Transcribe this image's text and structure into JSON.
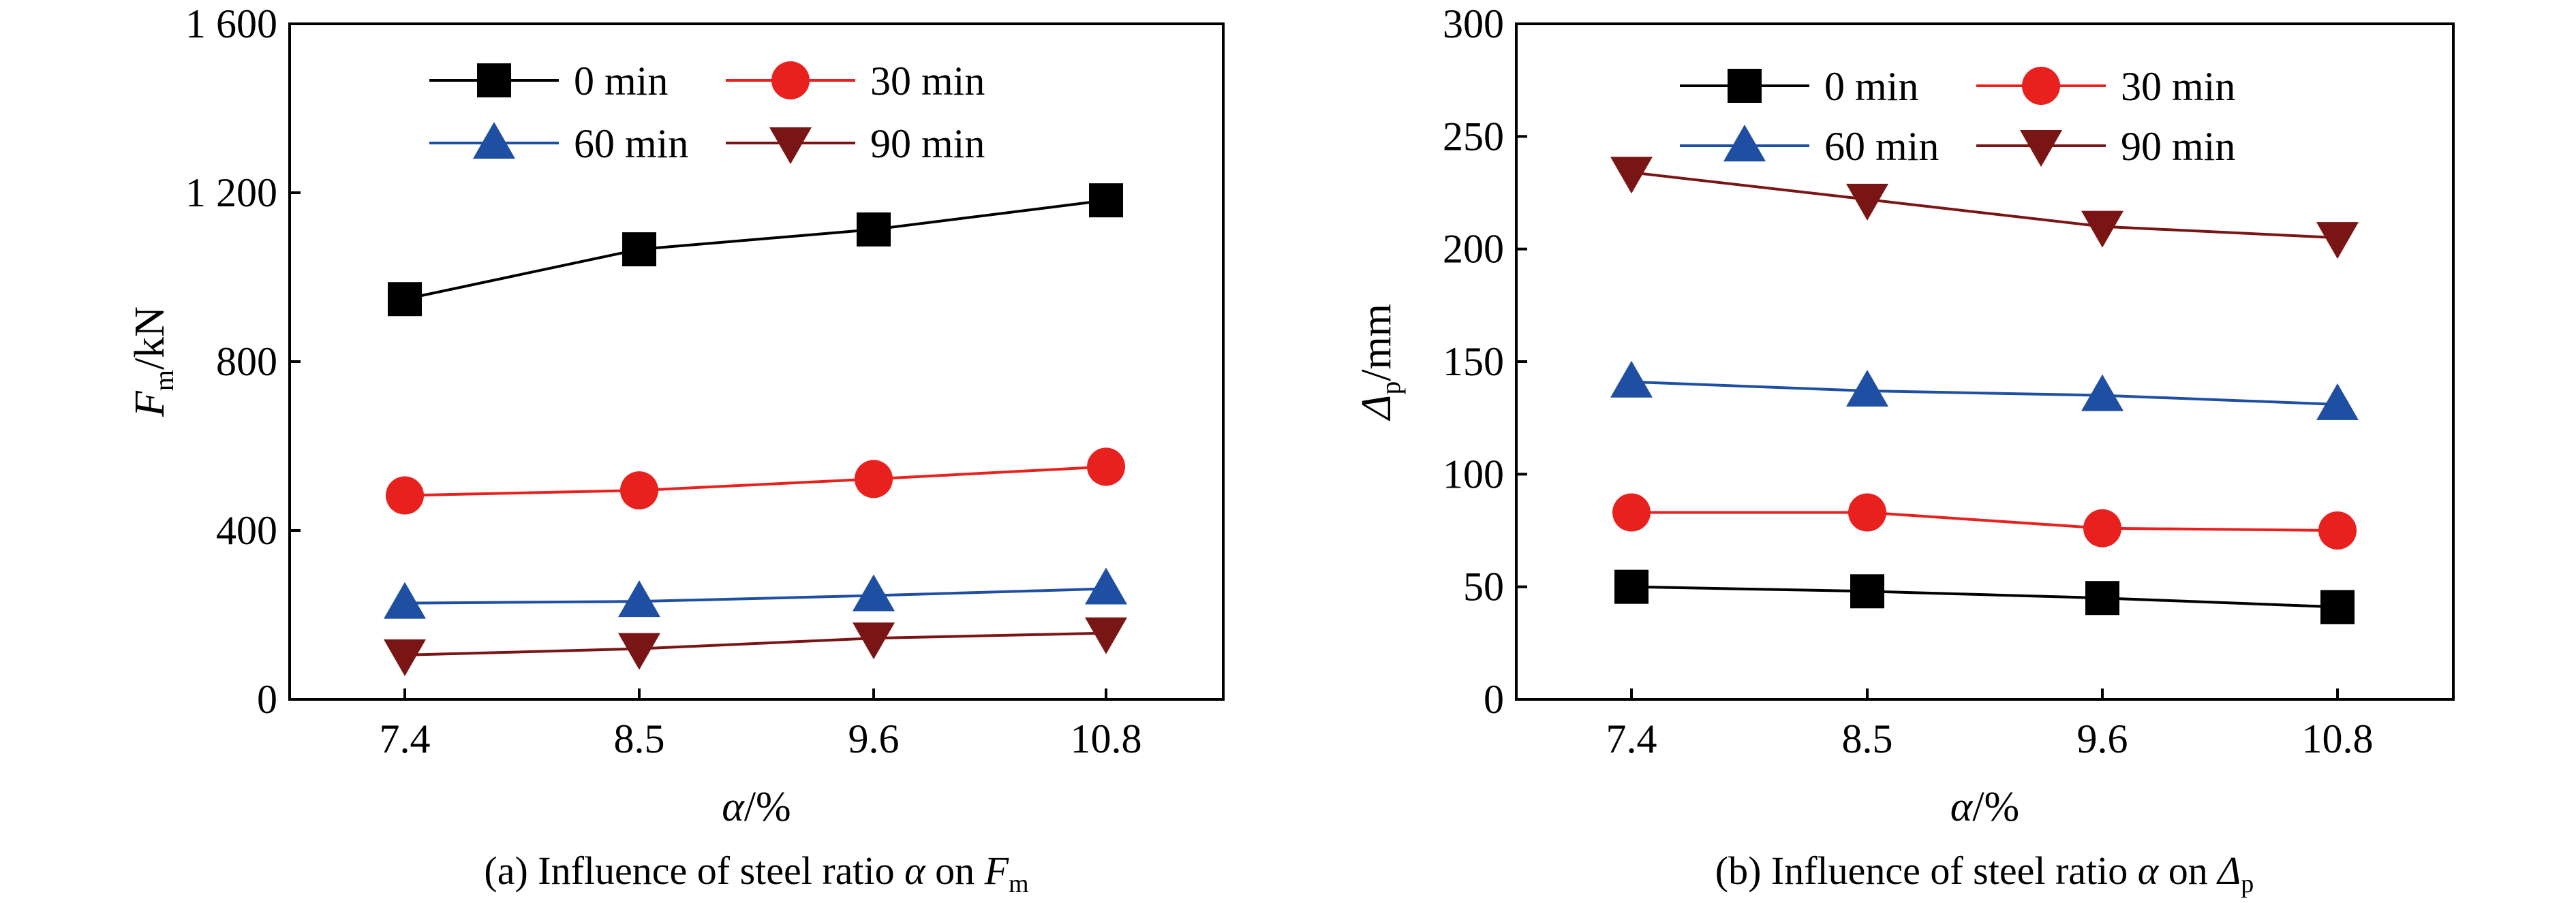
{
  "chart_data": [
    {
      "id": "a",
      "type": "line",
      "categories": [
        "7.4",
        "8.5",
        "9.6",
        "10.8"
      ],
      "series": [
        {
          "name": "0 min",
          "color": "#000000",
          "marker": "square",
          "values": [
            948,
            1066,
            1113,
            1182
          ]
        },
        {
          "name": "30 min",
          "color": "#e8201e",
          "marker": "circle",
          "values": [
            483,
            495,
            522,
            551
          ]
        },
        {
          "name": "60 min",
          "color": "#1f4fa3",
          "marker": "triangle-up",
          "values": [
            228,
            232,
            246,
            262
          ]
        },
        {
          "name": "90 min",
          "color": "#7a1515",
          "marker": "triangle-down",
          "values": [
            105,
            120,
            145,
            157
          ]
        }
      ],
      "ylim": [
        0,
        1600
      ],
      "yticks": [
        0,
        400,
        800,
        1200,
        1600
      ],
      "ytick_labels": [
        "0",
        "400",
        "800",
        "1 200",
        "1 600"
      ],
      "ylabel": {
        "main": "F",
        "sub": "m",
        "rest": "/kN"
      },
      "xlabel": {
        "main": "α",
        "rest": "/%"
      },
      "caption": {
        "pre": "(a) Influence of steel ratio ",
        "alpha": "α",
        "mid": " on ",
        "main": "F",
        "sub": "m"
      },
      "legend_position": "top-right",
      "grid": false
    },
    {
      "id": "b",
      "type": "line",
      "categories": [
        "7.4",
        "8.5",
        "9.6",
        "10.8"
      ],
      "series": [
        {
          "name": "0 min",
          "color": "#000000",
          "marker": "square",
          "values": [
            50,
            48,
            45,
            41
          ]
        },
        {
          "name": "30 min",
          "color": "#e8201e",
          "marker": "circle",
          "values": [
            83,
            83,
            76,
            75
          ]
        },
        {
          "name": "60 min",
          "color": "#1f4fa3",
          "marker": "triangle-up",
          "values": [
            141,
            137,
            135,
            131
          ]
        },
        {
          "name": "90 min",
          "color": "#7a1515",
          "marker": "triangle-down",
          "values": [
            234,
            222,
            210,
            205
          ]
        }
      ],
      "ylim": [
        0,
        300
      ],
      "yticks": [
        0,
        50,
        100,
        150,
        200,
        250,
        300
      ],
      "ytick_labels": [
        "0",
        "50",
        "100",
        "150",
        "200",
        "250",
        "300"
      ],
      "ylabel": {
        "main": "Δ",
        "sub": "p",
        "rest": "/mm"
      },
      "xlabel": {
        "main": "α",
        "rest": "/%"
      },
      "caption": {
        "pre": "(b) Influence of steel ratio ",
        "alpha": "α",
        "mid": " on ",
        "main": "Δ",
        "sub": "p"
      },
      "legend_position": "top-right",
      "grid": false
    }
  ]
}
